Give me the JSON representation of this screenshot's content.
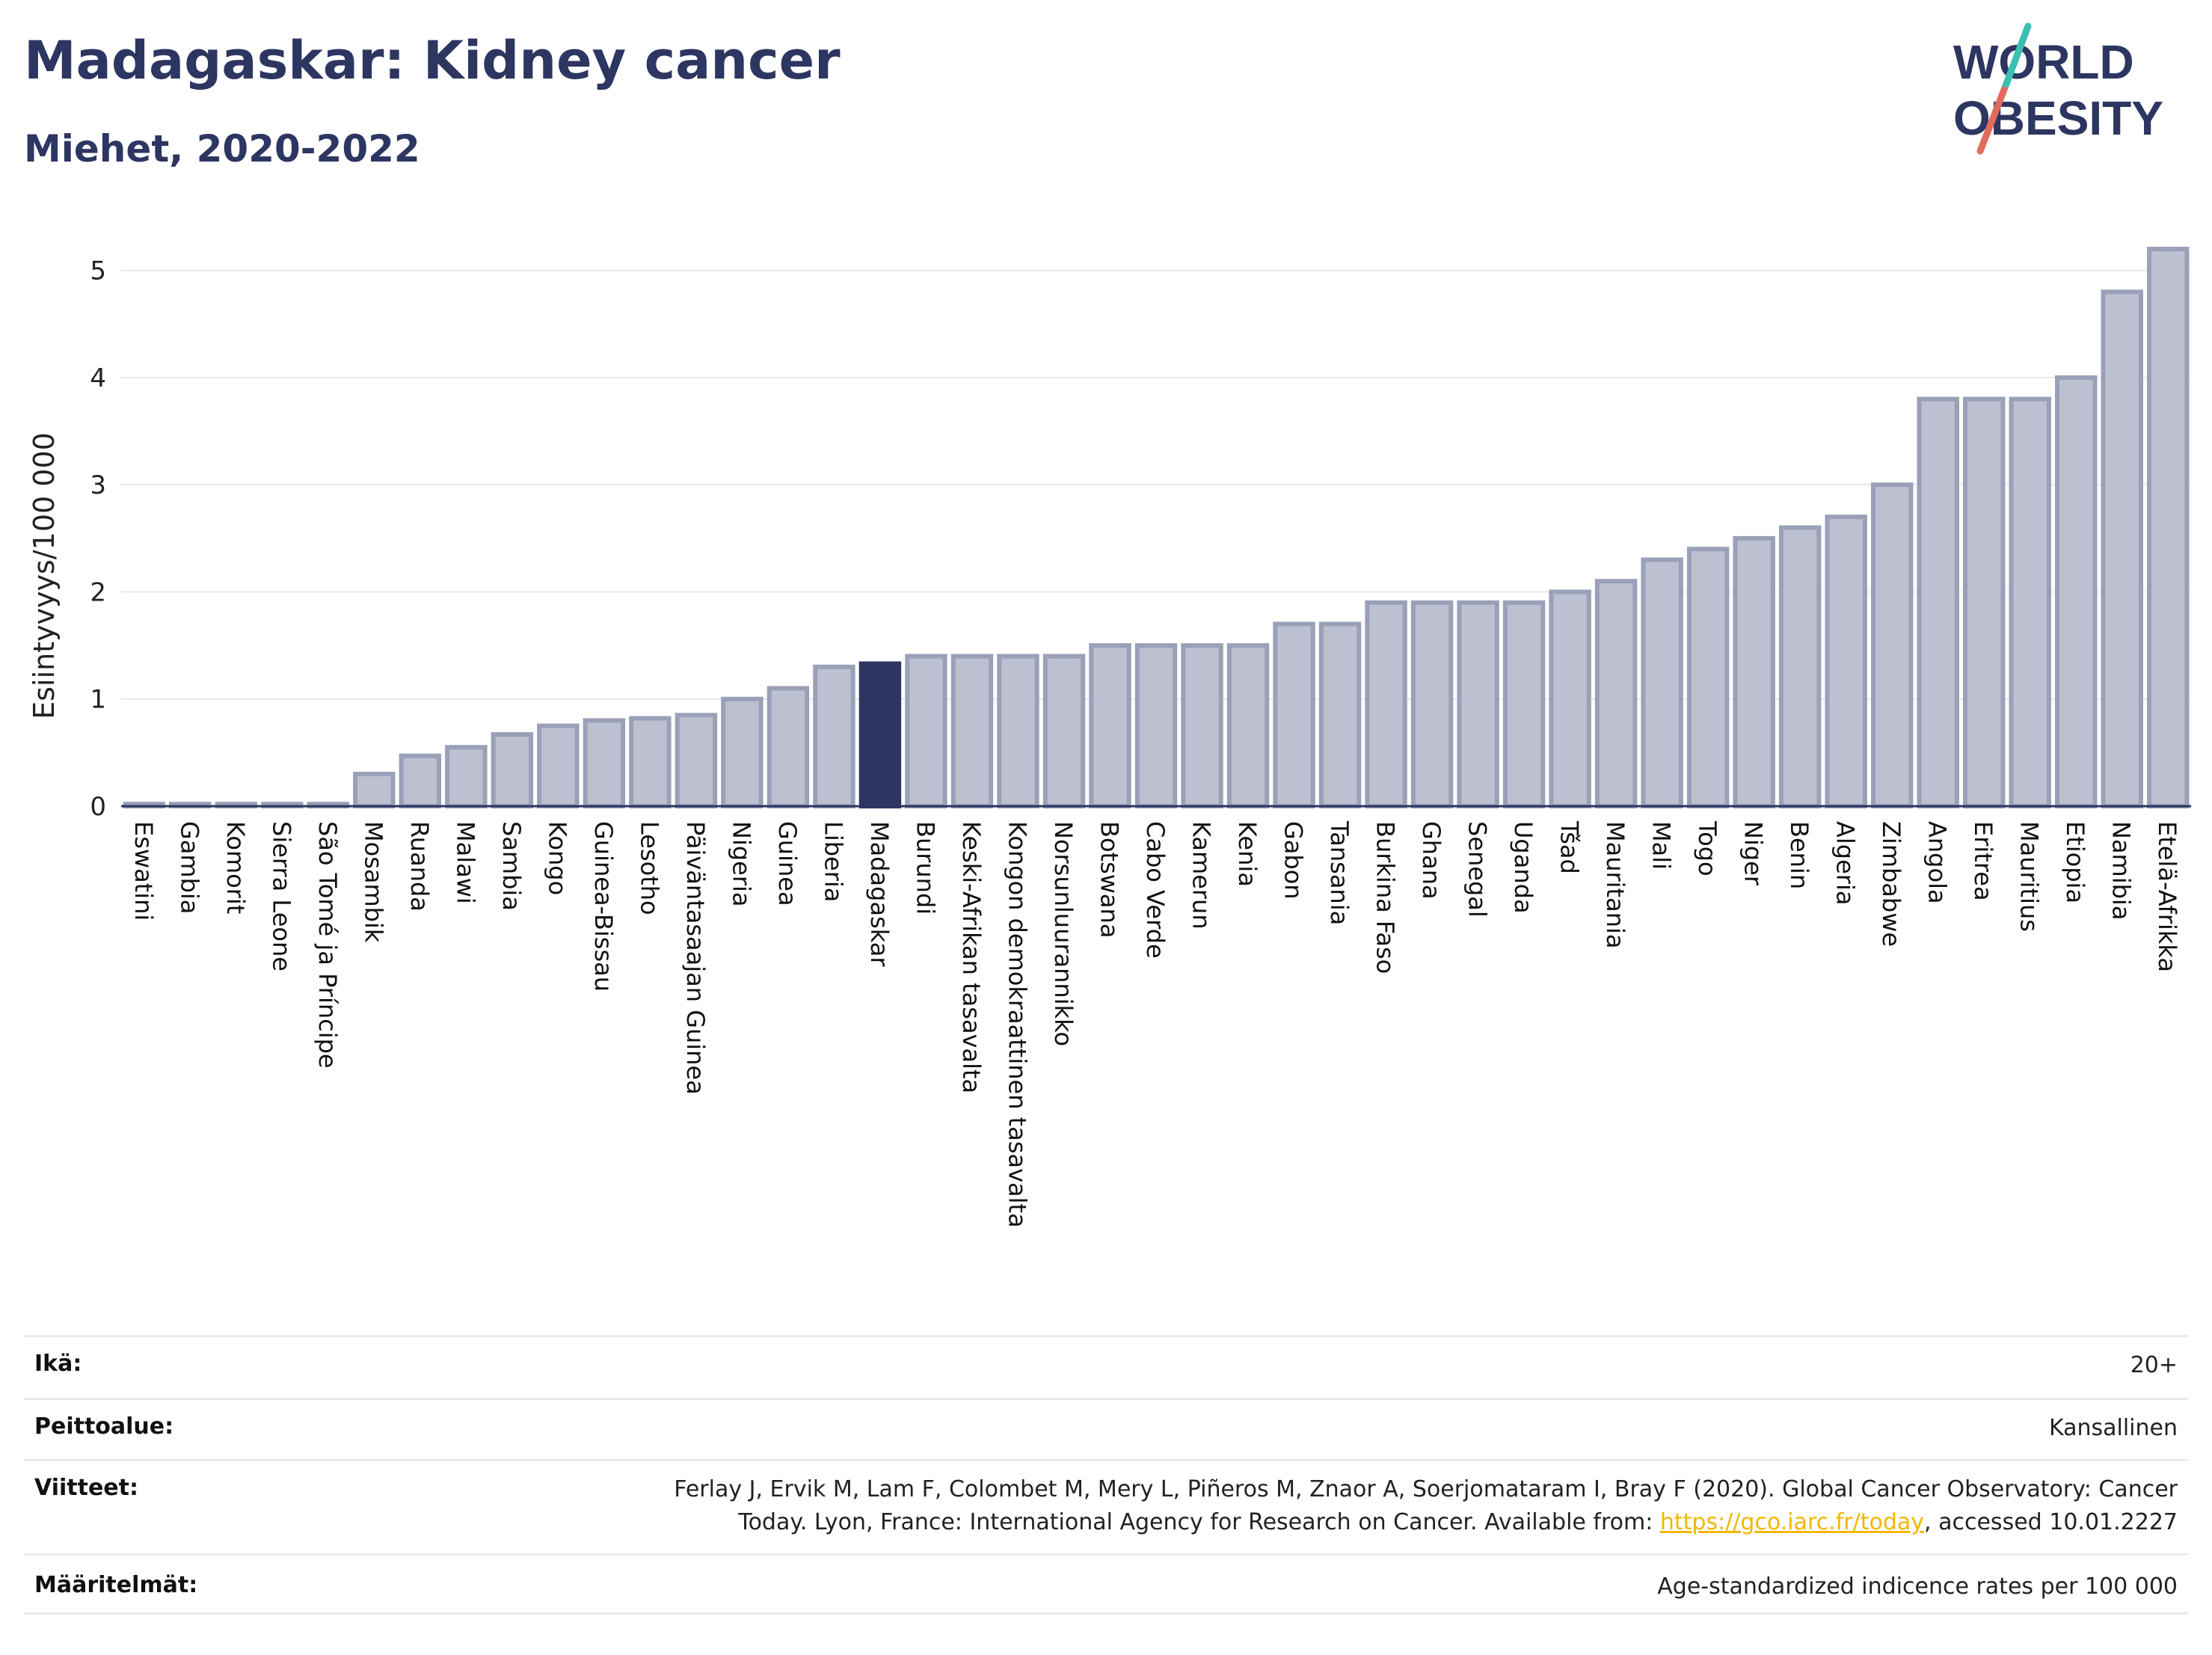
{
  "header": {
    "title": "Madagaskar: Kidney cancer",
    "subtitle": "Miehet, 2020-2022",
    "logo_line1": "WORLD",
    "logo_line2": "OBESITY"
  },
  "colors": {
    "highlight": "#2d3561",
    "bar_fill": "#bcc0d0",
    "bar_stroke": "#9aa0b8",
    "accent_teal": "#3bbfb2",
    "accent_coral": "#e36b5d",
    "link": "#f2b705"
  },
  "chart_data": {
    "type": "bar",
    "ylabel": "Esiintyvyys/100 000",
    "ylim": [
      0,
      5.5
    ],
    "yticks": [
      0,
      1,
      2,
      3,
      4,
      5
    ],
    "grid": true,
    "highlight": "Madagaskar",
    "categories": [
      "Eswatini",
      "Gambia",
      "Komorit",
      "Sierra Leone",
      "São Tomé ja Príncipe",
      "Mosambik",
      "Ruanda",
      "Malawi",
      "Sambia",
      "Kongo",
      "Guinea-Bissau",
      "Lesotho",
      "Päiväntasaajan Guinea",
      "Nigeria",
      "Guinea",
      "Liberia",
      "Madagaskar",
      "Burundi",
      "Keski-Afrikan tasavalta",
      "Kongon demokraattinen tasavalta",
      "Norsunluurannikko",
      "Botswana",
      "Cabo Verde",
      "Kamerun",
      "Kenia",
      "Gabon",
      "Tansania",
      "Burkina Faso",
      "Ghana",
      "Senegal",
      "Uganda",
      "Tšad",
      "Mauritania",
      "Mali",
      "Togo",
      "Niger",
      "Benin",
      "Algeria",
      "Zimbabwe",
      "Angola",
      "Eritrea",
      "Mauritius",
      "Etiopia",
      "Namibia",
      "Etelä-Afrikka"
    ],
    "values": [
      0.02,
      0.02,
      0.02,
      0.02,
      0.02,
      0.3,
      0.47,
      0.55,
      0.67,
      0.75,
      0.8,
      0.82,
      0.85,
      1.0,
      1.1,
      1.3,
      1.33,
      1.4,
      1.4,
      1.4,
      1.4,
      1.5,
      1.5,
      1.5,
      1.5,
      1.7,
      1.7,
      1.9,
      1.9,
      1.9,
      1.9,
      2.0,
      2.1,
      2.3,
      2.4,
      2.5,
      2.6,
      2.7,
      3.0,
      3.8,
      3.8,
      3.8,
      4.0,
      4.8,
      5.2
    ]
  },
  "meta": [
    {
      "label": "Ikä:",
      "value": "20+"
    },
    {
      "label": "Peittoalue:",
      "value": "Kansallinen"
    },
    {
      "label": "Viitteet:",
      "value_line1": "Ferlay J, Ervik M, Lam F, Colombet M, Mery L, Piñeros M, Znaor A, Soerjomataram I, Bray F (2020). Global Cancer Observatory: Cancer",
      "value_line2_pre": "Today. Lyon, France: International Agency for Research on Cancer. Available from: ",
      "link": "https://gco.iarc.fr/today",
      "value_line2_post": ", accessed 10.01.2227"
    },
    {
      "label": "Määritelmät:",
      "value": "Age-standardized indicence rates per 100 000"
    }
  ]
}
